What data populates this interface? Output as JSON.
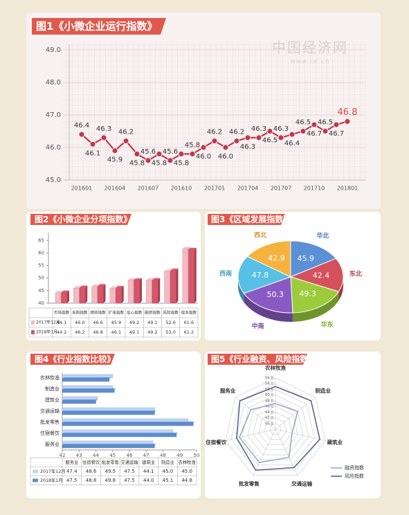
{
  "watermark": {
    "name": "中国经济网",
    "url": "www.ce.cn"
  },
  "chart_data": [
    {
      "type": "line",
      "title": "图1《小微企业运行指数》",
      "categories": [
        "201601",
        null,
        null,
        "201604",
        null,
        null,
        "201607",
        null,
        null,
        "201610",
        null,
        null,
        "201701",
        null,
        null,
        "201704",
        null,
        null,
        "201707",
        null,
        null,
        "201710",
        null,
        null,
        "201801"
      ],
      "values": [
        46.4,
        46.1,
        46.3,
        45.9,
        46.2,
        45.8,
        45.6,
        45.8,
        45.6,
        45.8,
        45.8,
        46.0,
        46.2,
        46.0,
        46.2,
        46.3,
        46.3,
        46.5,
        46.3,
        46.4,
        46.5,
        46.7,
        46.5,
        46.7,
        46.8
      ],
      "value_labels": [
        "46.4",
        "46.1",
        "46.3",
        "45.9",
        "46.2",
        "45.8",
        "45.6",
        "45.8",
        "45.6",
        "45.8",
        "45.8",
        "46.0",
        "46.2",
        "46.0",
        "46.2",
        "46.3",
        "46.3",
        "46.5",
        "46.3",
        "46.4",
        "46.5",
        "46.7",
        "46.5",
        "46.7",
        "46.8"
      ],
      "color": "#c0394b",
      "highlight_color": "#e04848",
      "ylim": [
        45,
        49
      ],
      "yticks": [
        {
          "value": 45,
          "label": "45.0"
        },
        {
          "value": 46,
          "label": "46.0"
        },
        {
          "value": 47,
          "label": "47.0"
        },
        {
          "value": 48,
          "label": "48.0"
        },
        {
          "value": 49,
          "label": "49.0"
        }
      ],
      "grid": true
    },
    {
      "type": "bar",
      "title": "图2《小微企业分项指数》",
      "categories": [
        "市场指数",
        "采购指数",
        "绩效指数",
        "扩张指数",
        "信心指数",
        "融资指数",
        "风险指数",
        "成本指数"
      ],
      "series": [
        {
          "name": "2017年12月",
          "color": "#f5b9c2",
          "values": [
            44.1,
            46.0,
            46.6,
            45.9,
            49.2,
            49.1,
            52.6,
            61.6
          ],
          "value_labels": [
            "44.1",
            "46.0",
            "46.6",
            "45.9",
            "49.2",
            "49.1",
            "52.6",
            "61.6"
          ]
        },
        {
          "name": "2018年1月",
          "color": "#d9566a",
          "values": [
            44.2,
            46.2,
            46.8,
            46.1,
            49.1,
            49.2,
            53.0,
            61.2
          ],
          "value_labels": [
            "44.2",
            "46.2",
            "46.8",
            "46.1",
            "49.1",
            "49.2",
            "53.0",
            "61.2"
          ]
        }
      ],
      "ylim": [
        40,
        67
      ],
      "yticks": [
        40,
        45,
        50,
        55,
        60,
        65
      ]
    },
    {
      "type": "pie",
      "title": "图3《区域发展指数》",
      "categories": [
        "华北",
        "东北",
        "华东",
        "中南",
        "西南",
        "西北"
      ],
      "values": [
        45.9,
        42.4,
        49.3,
        50.3,
        47.8,
        42.9
      ],
      "colors": [
        "#5b8fd6",
        "#d4505c",
        "#9ccc3c",
        "#8a5ac4",
        "#58bfe6",
        "#f5b23e"
      ]
    },
    {
      "type": "hbar",
      "title": "图4《行业指数比较》",
      "categories": [
        "服务业",
        "住宿餐饮",
        "批发零售",
        "交通运输",
        "建筑业",
        "制造业",
        "农林牧渔"
      ],
      "series": [
        {
          "name": "2017年12月",
          "color": "#c4d6f2",
          "values": [
            47.4,
            48.6,
            49.5,
            47.5,
            44.1,
            45.0,
            45.0
          ],
          "value_labels": [
            "47.4",
            "48.6",
            "49.5",
            "47.5",
            "44.1",
            "45.0",
            "45.0"
          ]
        },
        {
          "name": "2018年1月",
          "color": "#5f8fd2",
          "values": [
            47.5,
            48.8,
            49.8,
            47.5,
            44.0,
            45.1,
            44.8
          ],
          "value_labels": [
            "47.5",
            "48.8",
            "49.8",
            "47.5",
            "44.0",
            "45.1",
            "44.8"
          ]
        }
      ],
      "xlim": [
        42,
        50
      ],
      "xticks": [
        42,
        43,
        44,
        45,
        46,
        47,
        48,
        49,
        50
      ]
    },
    {
      "type": "radar",
      "title": "图5《行业融资、风险指数》",
      "categories": [
        "农林牧渔",
        "制造业",
        "建筑业",
        "交通运输",
        "批发零售",
        "住宿餐饮",
        "服务业"
      ],
      "series": [
        {
          "name": "融资指数",
          "color": "#9aa8c4",
          "values": [
            47,
            48,
            44,
            49,
            51,
            51,
            49
          ]
        },
        {
          "name": "风险指数",
          "color": "#5a6688",
          "values": [
            53,
            54,
            54,
            53,
            54,
            52,
            54
          ]
        }
      ],
      "rlim": [
        38,
        56
      ],
      "rticks": [
        {
          "value": 40,
          "label": "40.0"
        },
        {
          "value": 42,
          "label": "42.0"
        },
        {
          "value": 44,
          "label": "44.0"
        },
        {
          "value": 46,
          "label": "46.0"
        },
        {
          "value": 48,
          "label": "48.0"
        },
        {
          "value": 50,
          "label": "50.0"
        },
        {
          "value": 52,
          "label": "52.0"
        },
        {
          "value": 54,
          "label": "54.0"
        },
        {
          "value": 56,
          "label": "56.0"
        }
      ]
    }
  ]
}
